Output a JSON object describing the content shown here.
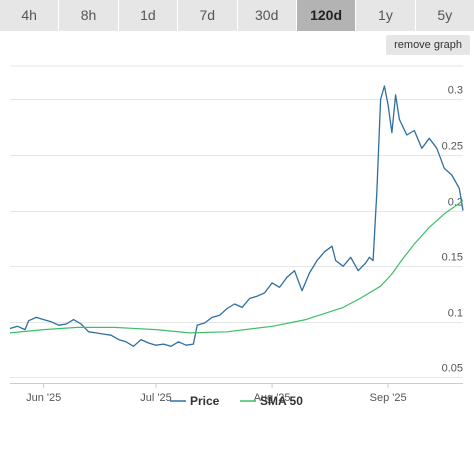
{
  "ranges": [
    "4h",
    "8h",
    "1d",
    "7d",
    "30d",
    "120d",
    "1y",
    "5y"
  ],
  "active_range": "120d",
  "remove_graph_label": "remove graph",
  "colors": {
    "price": "#2f6f9f",
    "sma": "#3dbf66",
    "grid": "#e6e6e6",
    "active_range_bg": "#b3b3b3"
  },
  "chart_data": {
    "type": "line",
    "title": "",
    "xlabel": "",
    "ylabel": "",
    "x_ticks": [
      {
        "label": "Jun '25",
        "date": "2025-06-01"
      },
      {
        "label": "Jul '25",
        "date": "2025-07-01"
      },
      {
        "label": "Aug '25",
        "date": "2025-08-01"
      },
      {
        "label": "Sep '25",
        "date": "2025-09-01"
      }
    ],
    "y_ticks": [
      0.05,
      0.1,
      0.15,
      0.2,
      0.25,
      0.3
    ],
    "ylim": [
      0.045,
      0.33
    ],
    "xlim": [
      "2025-05-23",
      "2025-09-21"
    ],
    "grid": true,
    "legend_position": "bottom-center",
    "series": [
      {
        "name": "Price",
        "points": [
          [
            "2025-05-23",
            0.094
          ],
          [
            "2025-05-25",
            0.096
          ],
          [
            "2025-05-27",
            0.093
          ],
          [
            "2025-05-28",
            0.101
          ],
          [
            "2025-05-30",
            0.104
          ],
          [
            "2025-06-01",
            0.102
          ],
          [
            "2025-06-03",
            0.1
          ],
          [
            "2025-06-05",
            0.097
          ],
          [
            "2025-06-07",
            0.098
          ],
          [
            "2025-06-09",
            0.102
          ],
          [
            "2025-06-11",
            0.098
          ],
          [
            "2025-06-13",
            0.091
          ],
          [
            "2025-06-15",
            0.09
          ],
          [
            "2025-06-17",
            0.089
          ],
          [
            "2025-06-19",
            0.088
          ],
          [
            "2025-06-21",
            0.084
          ],
          [
            "2025-06-23",
            0.082
          ],
          [
            "2025-06-25",
            0.078
          ],
          [
            "2025-06-27",
            0.084
          ],
          [
            "2025-06-29",
            0.081
          ],
          [
            "2025-07-01",
            0.079
          ],
          [
            "2025-07-03",
            0.08
          ],
          [
            "2025-07-05",
            0.078
          ],
          [
            "2025-07-07",
            0.082
          ],
          [
            "2025-07-09",
            0.079
          ],
          [
            "2025-07-11",
            0.08
          ],
          [
            "2025-07-12",
            0.097
          ],
          [
            "2025-07-14",
            0.099
          ],
          [
            "2025-07-16",
            0.104
          ],
          [
            "2025-07-18",
            0.106
          ],
          [
            "2025-07-20",
            0.112
          ],
          [
            "2025-07-22",
            0.116
          ],
          [
            "2025-07-24",
            0.113
          ],
          [
            "2025-07-26",
            0.121
          ],
          [
            "2025-07-28",
            0.123
          ],
          [
            "2025-07-30",
            0.126
          ],
          [
            "2025-08-01",
            0.135
          ],
          [
            "2025-08-03",
            0.131
          ],
          [
            "2025-08-05",
            0.14
          ],
          [
            "2025-08-07",
            0.146
          ],
          [
            "2025-08-09",
            0.128
          ],
          [
            "2025-08-11",
            0.144
          ],
          [
            "2025-08-13",
            0.155
          ],
          [
            "2025-08-15",
            0.163
          ],
          [
            "2025-08-17",
            0.168
          ],
          [
            "2025-08-18",
            0.155
          ],
          [
            "2025-08-20",
            0.15
          ],
          [
            "2025-08-22",
            0.158
          ],
          [
            "2025-08-24",
            0.146
          ],
          [
            "2025-08-26",
            0.153
          ],
          [
            "2025-08-27",
            0.158
          ],
          [
            "2025-08-28",
            0.155
          ],
          [
            "2025-08-29",
            0.218
          ],
          [
            "2025-08-30",
            0.3
          ],
          [
            "2025-08-31",
            0.312
          ],
          [
            "2025-09-01",
            0.295
          ],
          [
            "2025-09-02",
            0.27
          ],
          [
            "2025-09-03",
            0.304
          ],
          [
            "2025-09-04",
            0.282
          ],
          [
            "2025-09-06",
            0.268
          ],
          [
            "2025-09-08",
            0.272
          ],
          [
            "2025-09-10",
            0.256
          ],
          [
            "2025-09-12",
            0.265
          ],
          [
            "2025-09-14",
            0.256
          ],
          [
            "2025-09-16",
            0.238
          ],
          [
            "2025-09-18",
            0.232
          ],
          [
            "2025-09-20",
            0.22
          ],
          [
            "2025-09-21",
            0.2
          ]
        ]
      },
      {
        "name": "SMA 50",
        "points": [
          [
            "2025-05-23",
            0.09
          ],
          [
            "2025-06-01",
            0.093
          ],
          [
            "2025-06-10",
            0.095
          ],
          [
            "2025-06-20",
            0.095
          ],
          [
            "2025-07-01",
            0.093
          ],
          [
            "2025-07-10",
            0.09
          ],
          [
            "2025-07-20",
            0.091
          ],
          [
            "2025-08-01",
            0.096
          ],
          [
            "2025-08-10",
            0.102
          ],
          [
            "2025-08-20",
            0.113
          ],
          [
            "2025-08-25",
            0.122
          ],
          [
            "2025-08-30",
            0.132
          ],
          [
            "2025-09-02",
            0.143
          ],
          [
            "2025-09-05",
            0.157
          ],
          [
            "2025-09-08",
            0.17
          ],
          [
            "2025-09-12",
            0.185
          ],
          [
            "2025-09-16",
            0.197
          ],
          [
            "2025-09-21",
            0.209
          ]
        ]
      }
    ]
  }
}
